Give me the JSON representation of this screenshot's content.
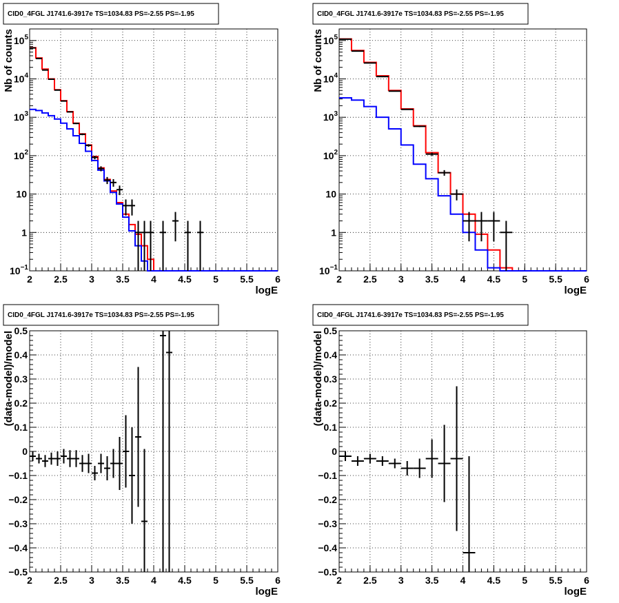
{
  "chart_data": [
    {
      "type": "histogram",
      "title": "CID0_4FGL J1741.6-3917e TS=1034.83 PS=-2.55 PS=-1.95",
      "xlabel": "logE",
      "ylabel": "Nb of counts",
      "xlim": [
        2,
        6
      ],
      "ylim": [
        0.1,
        200000
      ],
      "yscale": "log",
      "grid": true,
      "x_ticks": [
        "2",
        "2.5",
        "3",
        "3.5",
        "4",
        "4.5",
        "5",
        "5.5",
        "6"
      ],
      "y_ticks": [
        {
          "value": 0.1,
          "label": "10",
          "exp": "−1"
        },
        {
          "value": 1,
          "label": "1",
          "exp": ""
        },
        {
          "value": 10,
          "label": "10",
          "exp": ""
        },
        {
          "value": 100,
          "label": "10",
          "exp": "2"
        },
        {
          "value": 1000,
          "label": "10",
          "exp": "3"
        },
        {
          "value": 10000,
          "label": "10",
          "exp": "4"
        },
        {
          "value": 100000,
          "label": "10",
          "exp": "5"
        }
      ],
      "bin_edges_start": 2.0,
      "bin_width": 0.1,
      "series": [
        {
          "color": "#ff0000",
          "style": "step",
          "values": [
            65000,
            35000,
            18000,
            10000,
            5200,
            2700,
            1400,
            700,
            370,
            190,
            95,
            48,
            24,
            12,
            6,
            3,
            1.6,
            0.9,
            0.45,
            0.2,
            0.1,
            0.1,
            0.1,
            0.1,
            0.1,
            0.1,
            0.1,
            0.1,
            0.1,
            0.1,
            0.1,
            0.1,
            0.1,
            0.1,
            0.1,
            0.1,
            0.1,
            0.1,
            0.1,
            0.1
          ]
        },
        {
          "color": "#0000ff",
          "style": "step",
          "values": [
            1600,
            1500,
            1300,
            1100,
            900,
            700,
            500,
            330,
            210,
            130,
            75,
            42,
            22,
            11,
            5.5,
            2.5,
            1.1,
            0.45,
            0.18,
            0.1,
            0.1,
            0.1,
            0.1,
            0.1,
            0.1,
            0.1,
            0.1,
            0.1,
            0.1,
            0.1,
            0.1,
            0.1,
            0.1,
            0.1,
            0.1,
            0.1,
            0.1,
            0.1,
            0.1,
            0.1
          ]
        }
      ],
      "data_points": {
        "x": [
          2.05,
          2.15,
          2.25,
          2.35,
          2.45,
          2.55,
          2.65,
          2.75,
          2.85,
          2.95,
          3.05,
          3.15,
          3.25,
          3.35,
          3.45,
          3.55,
          3.65,
          3.75,
          3.85,
          3.95,
          4.15,
          4.35,
          4.55,
          4.75
        ],
        "y": [
          64000,
          34000,
          17000,
          9800,
          5100,
          2650,
          1380,
          690,
          360,
          185,
          90,
          46,
          23,
          20,
          13,
          5,
          5,
          1,
          1,
          1,
          1,
          2,
          1,
          1
        ],
        "xerr": 0.05
      }
    },
    {
      "type": "histogram",
      "title": "CID0_4FGL J1741.6-3917e TS=1034.83 PS=-2.55 PS=-1.95",
      "xlabel": "logE",
      "ylabel": "Nb of counts",
      "xlim": [
        2,
        6
      ],
      "ylim": [
        0.1,
        200000
      ],
      "yscale": "log",
      "grid": true,
      "x_ticks": [
        "2",
        "2.5",
        "3",
        "3.5",
        "4",
        "4.5",
        "5",
        "5.5",
        "6"
      ],
      "y_ticks": [
        {
          "value": 0.1,
          "label": "10",
          "exp": "−1"
        },
        {
          "value": 1,
          "label": "1",
          "exp": ""
        },
        {
          "value": 10,
          "label": "10",
          "exp": ""
        },
        {
          "value": 100,
          "label": "10",
          "exp": "2"
        },
        {
          "value": 1000,
          "label": "10",
          "exp": "3"
        },
        {
          "value": 10000,
          "label": "10",
          "exp": "4"
        },
        {
          "value": 100000,
          "label": "10",
          "exp": "5"
        }
      ],
      "bin_edges_start": 2.0,
      "bin_width": 0.2,
      "series": [
        {
          "color": "#ff0000",
          "style": "step",
          "values": [
            110000,
            55000,
            27000,
            12000,
            5000,
            1650,
            600,
            120,
            36,
            10,
            3,
            0.9,
            0.35,
            0.12,
            0.1,
            0.1,
            0.1,
            0.1,
            0.1,
            0.1
          ]
        },
        {
          "color": "#0000ff",
          "style": "step",
          "values": [
            3200,
            2800,
            1900,
            1000,
            500,
            190,
            60,
            25,
            9,
            3,
            1,
            0.35,
            0.12,
            0.1,
            0.1,
            0.1,
            0.1,
            0.1,
            0.1,
            0.1
          ]
        }
      ],
      "data_points": {
        "x": [
          2.1,
          2.3,
          2.5,
          2.7,
          2.9,
          3.1,
          3.3,
          3.5,
          3.7,
          3.9,
          4.1,
          4.3,
          4.5,
          4.7
        ],
        "y": [
          108000,
          53000,
          26000,
          11500,
          4800,
          1600,
          580,
          110,
          36,
          10,
          2,
          2,
          2,
          1
        ],
        "xerr": 0.1
      }
    },
    {
      "type": "scatter",
      "title": "CID0_4FGL J1741.6-3917e TS=1034.83 PS=-2.55 PS=-1.95",
      "xlabel": "logE",
      "ylabel": "(data-model)/model",
      "xlim": [
        2,
        6
      ],
      "ylim": [
        -0.5,
        0.5
      ],
      "grid": true,
      "x_ticks": [
        "2",
        "2.5",
        "3",
        "3.5",
        "4",
        "4.5",
        "5",
        "5.5",
        "6"
      ],
      "y_ticks": [
        "−0.5",
        "−0.4",
        "−0.3",
        "−0.2",
        "−0.1",
        "0",
        "0.1",
        "0.2",
        "0.3",
        "0.4",
        "0.5"
      ],
      "points": {
        "x": [
          2.05,
          2.15,
          2.25,
          2.35,
          2.45,
          2.55,
          2.65,
          2.75,
          2.85,
          2.95,
          3.05,
          3.15,
          3.25,
          3.35,
          3.45,
          3.55,
          3.65,
          3.75,
          3.85,
          4.15,
          4.25
        ],
        "y": [
          -0.02,
          -0.03,
          -0.04,
          -0.03,
          -0.03,
          -0.02,
          -0.03,
          -0.03,
          -0.05,
          -0.05,
          -0.09,
          -0.05,
          -0.07,
          -0.05,
          -0.05,
          0.0,
          -0.1,
          0.06,
          -0.29,
          0.48,
          0.41
        ],
        "yerr": [
          0.02,
          0.02,
          0.025,
          0.025,
          0.03,
          0.03,
          0.035,
          0.035,
          0.035,
          0.04,
          0.03,
          0.04,
          0.05,
          0.06,
          0.11,
          0.15,
          0.2,
          0.29,
          0.3,
          1.0,
          1.0
        ],
        "xerr": 0.05
      }
    },
    {
      "type": "scatter",
      "title": "CID0_4FGL J1741.6-3917e TS=1034.83 PS=-2.55 PS=-1.95",
      "xlabel": "logE",
      "ylabel": "(data-model)/model",
      "xlim": [
        2,
        6
      ],
      "ylim": [
        -0.5,
        0.5
      ],
      "grid": true,
      "x_ticks": [
        "2",
        "2.5",
        "3",
        "3.5",
        "4",
        "4.5",
        "5",
        "5.5",
        "6"
      ],
      "y_ticks": [
        "−0.5",
        "−0.4",
        "−0.3",
        "−0.2",
        "−0.1",
        "0",
        "0.1",
        "0.2",
        "0.3",
        "0.4",
        "0.5"
      ],
      "points": {
        "x": [
          2.1,
          2.3,
          2.5,
          2.7,
          2.9,
          3.1,
          3.3,
          3.5,
          3.7,
          3.9,
          4.1
        ],
        "y": [
          -0.02,
          -0.04,
          -0.03,
          -0.04,
          -0.05,
          -0.07,
          -0.07,
          -0.03,
          -0.05,
          -0.03,
          -0.42
        ],
        "yerr": [
          0.02,
          0.02,
          0.02,
          0.02,
          0.02,
          0.03,
          0.04,
          0.08,
          0.16,
          0.3,
          0.4
        ],
        "xerr": 0.1
      }
    }
  ]
}
